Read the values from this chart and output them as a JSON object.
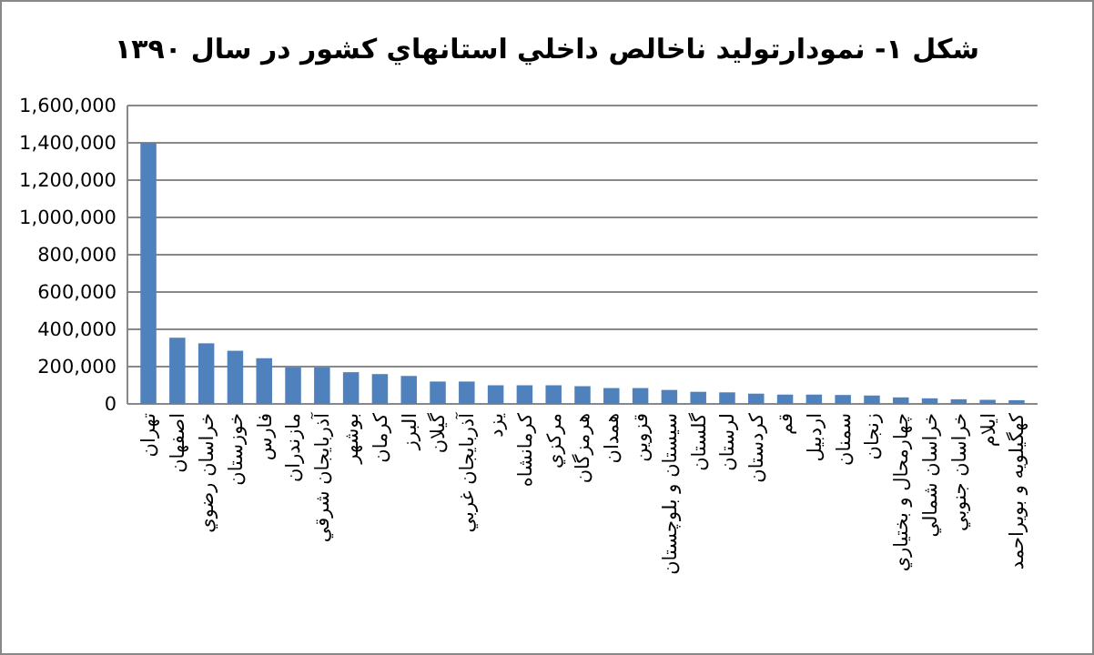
{
  "chart_data": {
    "type": "bar",
    "title": "شكل ١- نمودارتوليد ناخالص داخلي استانهاي كشور در سال ١٣٩٠",
    "categories": [
      "تهران",
      "اصفهان",
      "خراسان رضوي",
      "خوزستان",
      "فارس",
      "مازندران",
      "آذربايجان شرقي",
      "بوشهر",
      "كرمان",
      "البرز",
      "گيلان",
      "آذربايجان غربي",
      "يزد",
      "كرمانشاه",
      "مركزي",
      "هرمزگان",
      "همدان",
      "قزوين",
      "سيستان و بلوچستان",
      "گلستان",
      "لرستان",
      "كردستان",
      "قم",
      "اردبيل",
      "سمنان",
      "زنجان",
      "چهارمحال و بختياري",
      "خراسان شمالي",
      "خراسان جنوبي",
      "ايلام",
      "كهگيلويه و بويراحمد"
    ],
    "values": [
      1400000,
      355000,
      325000,
      285000,
      245000,
      195000,
      195000,
      170000,
      160000,
      150000,
      120000,
      120000,
      100000,
      100000,
      100000,
      95000,
      85000,
      85000,
      75000,
      65000,
      62000,
      55000,
      50000,
      50000,
      48000,
      45000,
      35000,
      30000,
      25000,
      22000,
      20000
    ],
    "color": "#4f81bd",
    "ylim": [
      0,
      1600000
    ],
    "yticks": [
      {
        "value": 0,
        "label": "0"
      },
      {
        "value": 200000,
        "label": "200,000"
      },
      {
        "value": 400000,
        "label": "400,000"
      },
      {
        "value": 600000,
        "label": "600,000"
      },
      {
        "value": 800000,
        "label": "800,000"
      },
      {
        "value": 1000000,
        "label": "1,000,000"
      },
      {
        "value": 1200000,
        "label": "1,200,000"
      },
      {
        "value": 1400000,
        "label": "1,400,000"
      },
      {
        "value": 1600000,
        "label": "1,600,000"
      }
    ],
    "grid": true
  }
}
